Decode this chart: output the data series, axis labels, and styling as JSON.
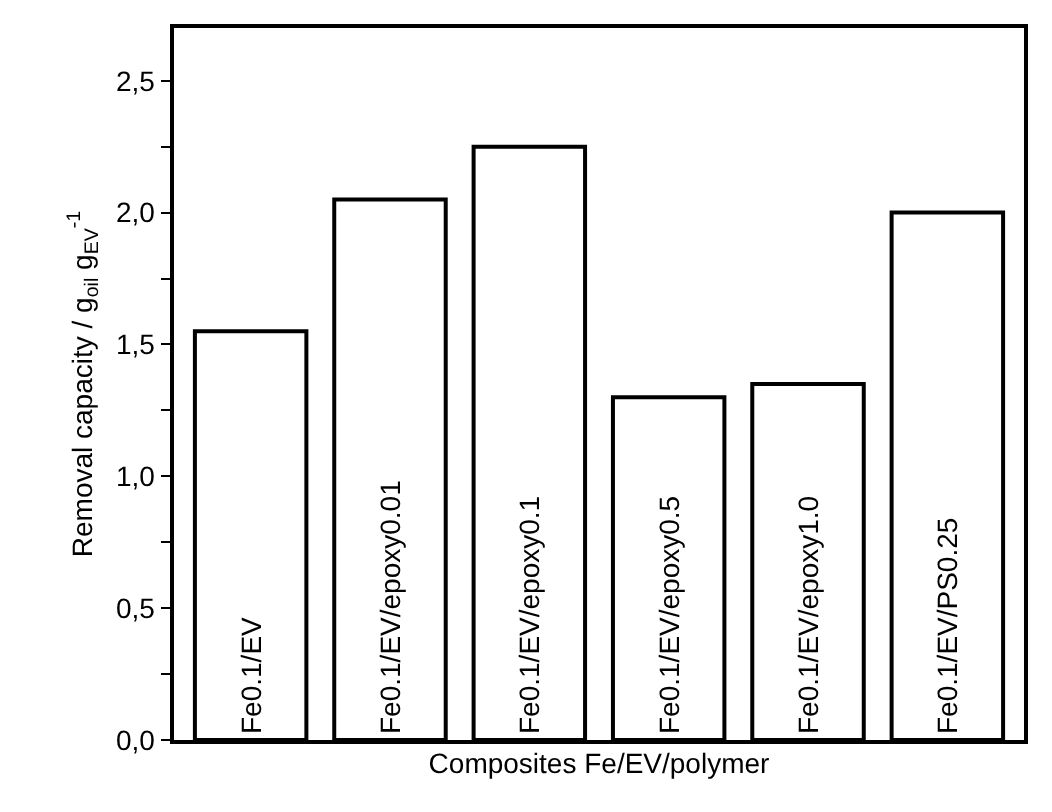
{
  "chart_data": {
    "type": "bar",
    "xlabel": "Composites Fe/EV/polymer",
    "ylabel": "Removal capacity / g$_{oil}$ g$_{EV}$$^{-1}$",
    "categories": [
      "Fe0.1/EV",
      "Fe0.1/EV/epoxy0.01",
      "Fe0.1/EV/epoxy0.1",
      "Fe0.1/EV/epoxy0.5",
      "Fe0.1/EV/epoxy1.0",
      "Fe0.1/EV/PS0.25"
    ],
    "values": [
      1.55,
      2.05,
      2.25,
      1.3,
      1.35,
      2.0
    ],
    "color": "#ffffff",
    "ylim": [
      0,
      2.7
    ],
    "yticks": [
      {
        "value": 0,
        "label": "0,0"
      },
      {
        "value": 0.25,
        "label": null
      },
      {
        "value": 0.5,
        "label": "0,5"
      },
      {
        "value": 0.75,
        "label": null
      },
      {
        "value": 1.0,
        "label": "1,0"
      },
      {
        "value": 1.25,
        "label": null
      },
      {
        "value": 1.5,
        "label": "1,5"
      },
      {
        "value": 1.75,
        "label": null
      },
      {
        "value": 2.0,
        "label": "2,0"
      },
      {
        "value": 2.25,
        "label": null
      },
      {
        "value": 2.5,
        "label": "2,5"
      }
    ],
    "tick_labels": "y"
  }
}
